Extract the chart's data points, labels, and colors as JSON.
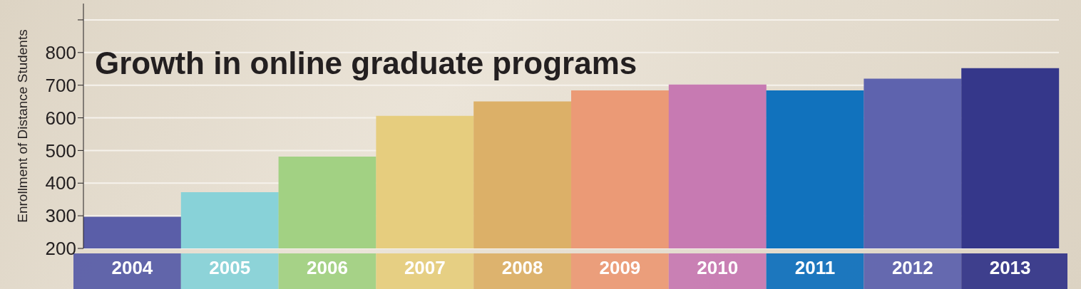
{
  "chart_data": {
    "type": "bar",
    "title": "Growth in online graduate programs",
    "ylabel": "Enrollment of Distance Students",
    "categories": [
      "2004",
      "2005",
      "2006",
      "2007",
      "2008",
      "2009",
      "2010",
      "2011",
      "2012",
      "2013"
    ],
    "values": [
      297,
      372,
      481,
      606,
      650,
      684,
      702,
      684,
      720,
      752
    ],
    "colors": [
      "#5a5ea8",
      "#88d2d8",
      "#a2d183",
      "#e6cd7e",
      "#dcb068",
      "#eb9a76",
      "#c77ab2",
      "#1172bd",
      "#5e63ae",
      "#35378a"
    ],
    "ylim": [
      200,
      950
    ],
    "yticks": [
      200,
      300,
      400,
      500,
      600,
      700,
      800,
      {
        "value": 900,
        "label": null
      }
    ],
    "grid": "y"
  }
}
